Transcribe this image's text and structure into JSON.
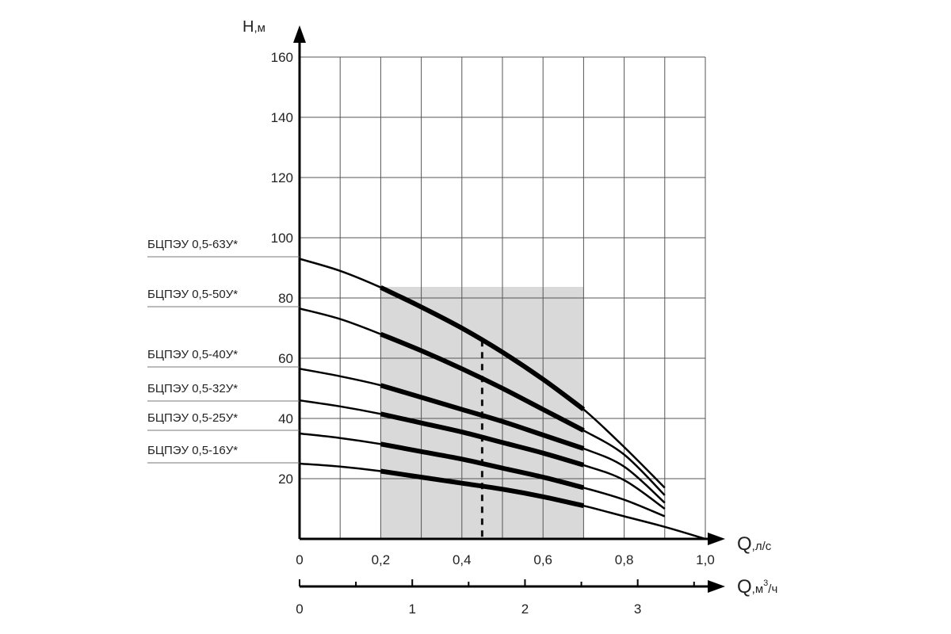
{
  "chart_data": {
    "type": "line",
    "title": "",
    "y_axis": {
      "name": "H",
      "unit": ",м",
      "range": [
        0,
        160
      ],
      "grid_step": 20,
      "tick_values": [
        20,
        40,
        60,
        80,
        100,
        120,
        140,
        160
      ],
      "tick_labels": [
        "20",
        "40",
        "60",
        "80",
        "100",
        "120",
        "140",
        "160"
      ]
    },
    "x_axis_primary": {
      "name": "Q",
      "unit": ",л/с",
      "range": [
        0,
        1.0
      ],
      "grid_step": 0.1,
      "tick_values": [
        0,
        0.2,
        0.4,
        0.6,
        0.8,
        1.0
      ],
      "tick_labels": [
        "0",
        "0,2",
        "0,4",
        "0,6",
        "0,8",
        "1,0"
      ]
    },
    "x_axis_secondary": {
      "name": "Q",
      "unit_main": ",м",
      "unit_sup": "3",
      "unit_tail": "/ч",
      "range": [
        0,
        3.6
      ],
      "tick_values": [
        0,
        1,
        2,
        3
      ],
      "tick_labels": [
        "0",
        "1",
        "2",
        "3"
      ],
      "minor_tick_step": 0.5
    },
    "grid": true,
    "working_zone": {
      "q_min": 0.2,
      "q_max": 0.7,
      "color": "#d9d9d9"
    },
    "nominal_flow": 0.45,
    "series": [
      {
        "name": "БЦПЭУ 0,5-63У*",
        "x": [
          0,
          0.1,
          0.2,
          0.3,
          0.4,
          0.5,
          0.6,
          0.7,
          0.8,
          0.9
        ],
        "y": [
          93,
          89,
          83.5,
          77,
          70,
          62,
          53,
          43,
          30.5,
          17
        ]
      },
      {
        "name": "БЦПЭУ 0,5-50У*",
        "x": [
          0,
          0.1,
          0.2,
          0.3,
          0.4,
          0.5,
          0.6,
          0.7,
          0.8,
          0.9
        ],
        "y": [
          76.5,
          73,
          68,
          62.5,
          56.5,
          50,
          43,
          36,
          28,
          14.5
        ]
      },
      {
        "name": "БЦПЭУ 0,5-40У*",
        "x": [
          0,
          0.1,
          0.2,
          0.3,
          0.4,
          0.5,
          0.6,
          0.7,
          0.8,
          0.9
        ],
        "y": [
          56.5,
          54,
          51,
          47,
          43,
          39,
          34.5,
          30,
          24,
          12
        ]
      },
      {
        "name": "БЦПЭУ 0,5-32У*",
        "x": [
          0,
          0.1,
          0.2,
          0.3,
          0.4,
          0.5,
          0.6,
          0.7,
          0.8,
          0.9
        ],
        "y": [
          46,
          44,
          41.5,
          38.5,
          35.5,
          32,
          28.5,
          24.5,
          19.5,
          10
        ]
      },
      {
        "name": "БЦПЭУ 0,5-25У*",
        "x": [
          0,
          0.1,
          0.2,
          0.3,
          0.4,
          0.5,
          0.6,
          0.7,
          0.8,
          0.9
        ],
        "y": [
          35,
          33.5,
          31.5,
          29,
          26.5,
          23.5,
          20.5,
          17,
          13,
          7.5
        ]
      },
      {
        "name": "БЦПЭУ 0,5-16У*",
        "x": [
          0,
          0.1,
          0.2,
          0.3,
          0.4,
          0.5,
          0.6,
          0.7,
          0.8,
          0.9,
          1.0
        ],
        "y": [
          25,
          24,
          22.5,
          20.5,
          18.5,
          16.5,
          14,
          11,
          7.5,
          4,
          0
        ]
      }
    ]
  }
}
